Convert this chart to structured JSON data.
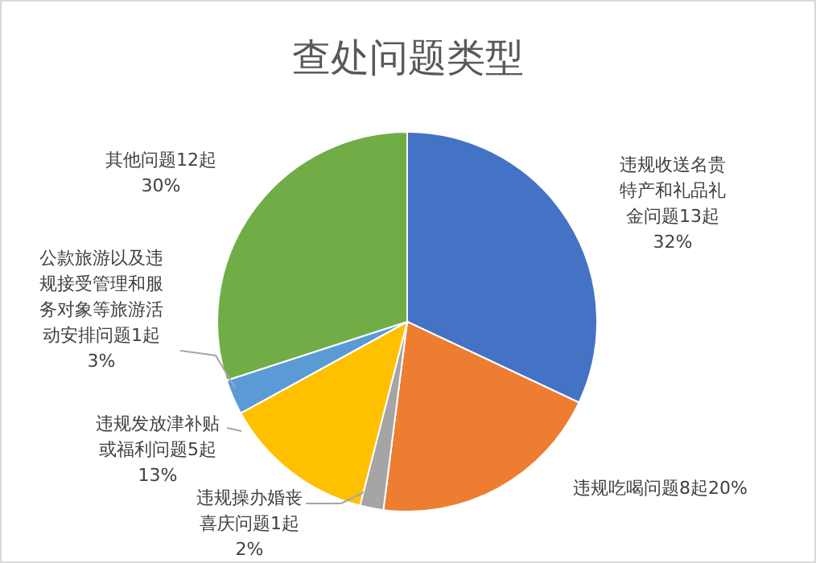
{
  "chart_data": {
    "type": "pie",
    "title": "查处问题类型",
    "categories": [
      "违规收送名贵特产和礼品礼金问题13起",
      "违规吃喝问题8起",
      "违规操办婚丧喜庆问题1起",
      "违规发放津补贴或福利问题5起",
      "公款旅游以及违规接受管理和服务对象等旅游活动安排问题1起",
      "其他问题12起"
    ],
    "values": [
      32,
      20,
      2,
      13,
      3,
      30
    ],
    "value_labels": [
      "32%",
      "20%",
      "2%",
      "13%",
      "3%",
      "30%"
    ],
    "colors": [
      "#4472c4",
      "#ed7d31",
      "#a5a5a5",
      "#ffc000",
      "#5b9bd5",
      "#70ad47"
    ]
  }
}
